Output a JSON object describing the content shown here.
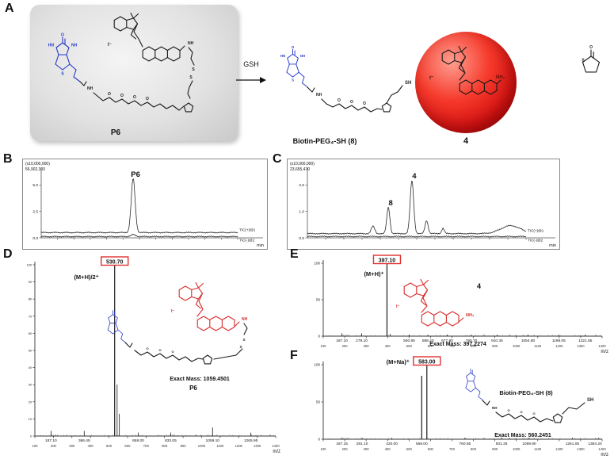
{
  "panels": {
    "A": {
      "label": "A",
      "reactant_name": "P6",
      "arrow_label": "GSH",
      "product1_name": "Biotin-PEG₄-SH (8)",
      "product2_name": "4"
    },
    "B": {
      "label": "B"
    },
    "C": {
      "label": "C"
    },
    "D": {
      "label": "D",
      "exact_mass": "Exact Mass: 1059.4501",
      "compound": "P6"
    },
    "E": {
      "label": "E",
      "exact_mass": "Exact Mass: 397.2274",
      "compound": "4"
    },
    "F": {
      "label": "F",
      "exact_mass": "Exact Mass: 560.2451",
      "compound": "Biotin-PEG₄-SH (8)"
    }
  },
  "atoms": {
    "o": "O",
    "s": "S",
    "nh": "NH",
    "hn": "HN",
    "nh2": "NH₂",
    "sh": "SH",
    "iodide": "I⁻"
  },
  "chart_data": [
    {
      "id": "chromB",
      "type": "chromatogram",
      "panel": "B",
      "scale_label": "(x10,000,000)",
      "max_intensity": "56,902,300",
      "ylim": [
        0,
        6.0
      ],
      "yticks": [
        5.0,
        2.5,
        0.0
      ],
      "xlabel": "min",
      "series": [
        {
          "name": "TIC(+)@1",
          "baseline": 0.5,
          "peaks": [
            {
              "pos": 0.468,
              "h": 5.1,
              "w": 0.01,
              "label": "P6"
            }
          ]
        },
        {
          "name": "TIC(-)@2",
          "baseline": 0.12,
          "peaks": [
            {
              "pos": 0.468,
              "h": 0.18,
              "w": 0.012
            }
          ]
        }
      ]
    },
    {
      "id": "chromC",
      "type": "chromatogram",
      "panel": "C",
      "scale_label": "(x10,000,000)",
      "max_intensity": "23,655,470",
      "ylim": [
        0,
        2.4
      ],
      "yticks": [
        2.0,
        1.0,
        0.0
      ],
      "xlabel": "min",
      "series": [
        {
          "name": "TIC(+)@1",
          "baseline": 0.16,
          "peaks": [
            {
              "pos": 0.3,
              "h": 0.28,
              "w": 0.008
            },
            {
              "pos": 0.37,
              "h": 1.0,
              "w": 0.007,
              "label": "8"
            },
            {
              "pos": 0.478,
              "h": 2.02,
              "w": 0.008,
              "label": "4"
            },
            {
              "pos": 0.545,
              "h": 0.5,
              "w": 0.007
            },
            {
              "pos": 0.62,
              "h": 0.2,
              "w": 0.006
            },
            {
              "pos": 0.93,
              "h": 0.3,
              "w": 0.045
            }
          ]
        },
        {
          "name": "TIC(-)@2",
          "baseline": 0.05,
          "peaks": []
        }
      ]
    },
    {
      "id": "msD",
      "type": "ms",
      "panel": "D",
      "xlim": [
        100,
        1400
      ],
      "xticks": [
        100,
        200,
        300,
        400,
        500,
        600,
        700,
        800,
        900,
        1000,
        1100,
        1200,
        1300,
        1400
      ],
      "yticks": [
        0,
        10,
        20,
        30,
        40,
        50,
        60,
        70,
        80,
        90,
        100
      ],
      "xlabel": "m/z",
      "main_peak": {
        "mz": 530.7,
        "label": "530.70",
        "ion": "(M+H)/2⁺"
      },
      "peaks": [
        {
          "mz": 187.1,
          "i": 3,
          "label": "187.10"
        },
        {
          "mz": 366.45,
          "i": 3,
          "label": "366.45"
        },
        {
          "mz": 530.7,
          "i": 100
        },
        {
          "mz": 544.0,
          "i": 30
        },
        {
          "mz": 556.0,
          "i": 13
        },
        {
          "mz": 658.0,
          "i": 2,
          "label": "658.00"
        },
        {
          "mz": 833.05,
          "i": 2,
          "label": "833.05"
        },
        {
          "mz": 1059.1,
          "i": 5,
          "label": "1059.10"
        },
        {
          "mz": 1265.95,
          "i": 2,
          "label": "1265.95"
        }
      ]
    },
    {
      "id": "msE",
      "type": "ms",
      "panel": "E",
      "xlim": [
        100,
        1400
      ],
      "xticks": [
        100,
        200,
        300,
        400,
        500,
        600,
        700,
        800,
        900,
        1000,
        1100,
        1200,
        1300,
        1400
      ],
      "yticks": [
        0,
        50,
        100
      ],
      "xlabel": "m/z",
      "main_peak": {
        "mz": 397.1,
        "label": "397.10",
        "ion": "(M+H)⁺"
      },
      "peaks": [
        {
          "mz": 187.1,
          "i": 4,
          "label": "187.10"
        },
        {
          "mz": 279.1,
          "i": 4,
          "label": "279.10"
        },
        {
          "mz": 397.1,
          "i": 100
        },
        {
          "mz": 412.0,
          "i": 3
        },
        {
          "mz": 500.65,
          "i": 2,
          "label": "500.65"
        },
        {
          "mz": 588.2,
          "i": 2,
          "label": "588.20"
        },
        {
          "mz": 677.8,
          "i": 2,
          "label": "677.80"
        },
        {
          "mz": 790.7,
          "i": 2,
          "label": "790.70"
        },
        {
          "mz": 910.35,
          "i": 2,
          "label": "910.35"
        },
        {
          "mz": 1054.8,
          "i": 2,
          "label": "1054.80"
        },
        {
          "mz": 1198.05,
          "i": 2,
          "label": "1198.05"
        },
        {
          "mz": 1321.55,
          "i": 2,
          "label": "1321.55"
        }
      ]
    },
    {
      "id": "msF",
      "type": "ms",
      "panel": "F",
      "xlim": [
        100,
        1400
      ],
      "xticks": [
        100,
        200,
        300,
        400,
        500,
        600,
        700,
        800,
        900,
        1000,
        1100,
        1200,
        1300,
        1400
      ],
      "yticks": [
        0,
        50,
        100
      ],
      "xlabel": "m/z",
      "main_peak": {
        "mz": 583.0,
        "label": "583.00",
        "ion": "(M+Na)⁺"
      },
      "peaks": [
        {
          "mz": 187.15,
          "i": 2,
          "label": "187.15"
        },
        {
          "mz": 281.1,
          "i": 2,
          "label": "281.10"
        },
        {
          "mz": 420.0,
          "i": 2,
          "label": "420.00"
        },
        {
          "mz": 559.0,
          "i": 85,
          "label": "559.00"
        },
        {
          "mz": 583.0,
          "i": 100
        },
        {
          "mz": 760.55,
          "i": 2,
          "label": "760.55"
        },
        {
          "mz": 931.25,
          "i": 2,
          "label": "931.25"
        },
        {
          "mz": 1059.9,
          "i": 2,
          "label": "1059.90"
        },
        {
          "mz": 1261.05,
          "i": 2,
          "label": "1261.05"
        },
        {
          "mz": 1384.2,
          "i": 2,
          "label": "1384.20"
        }
      ]
    }
  ]
}
